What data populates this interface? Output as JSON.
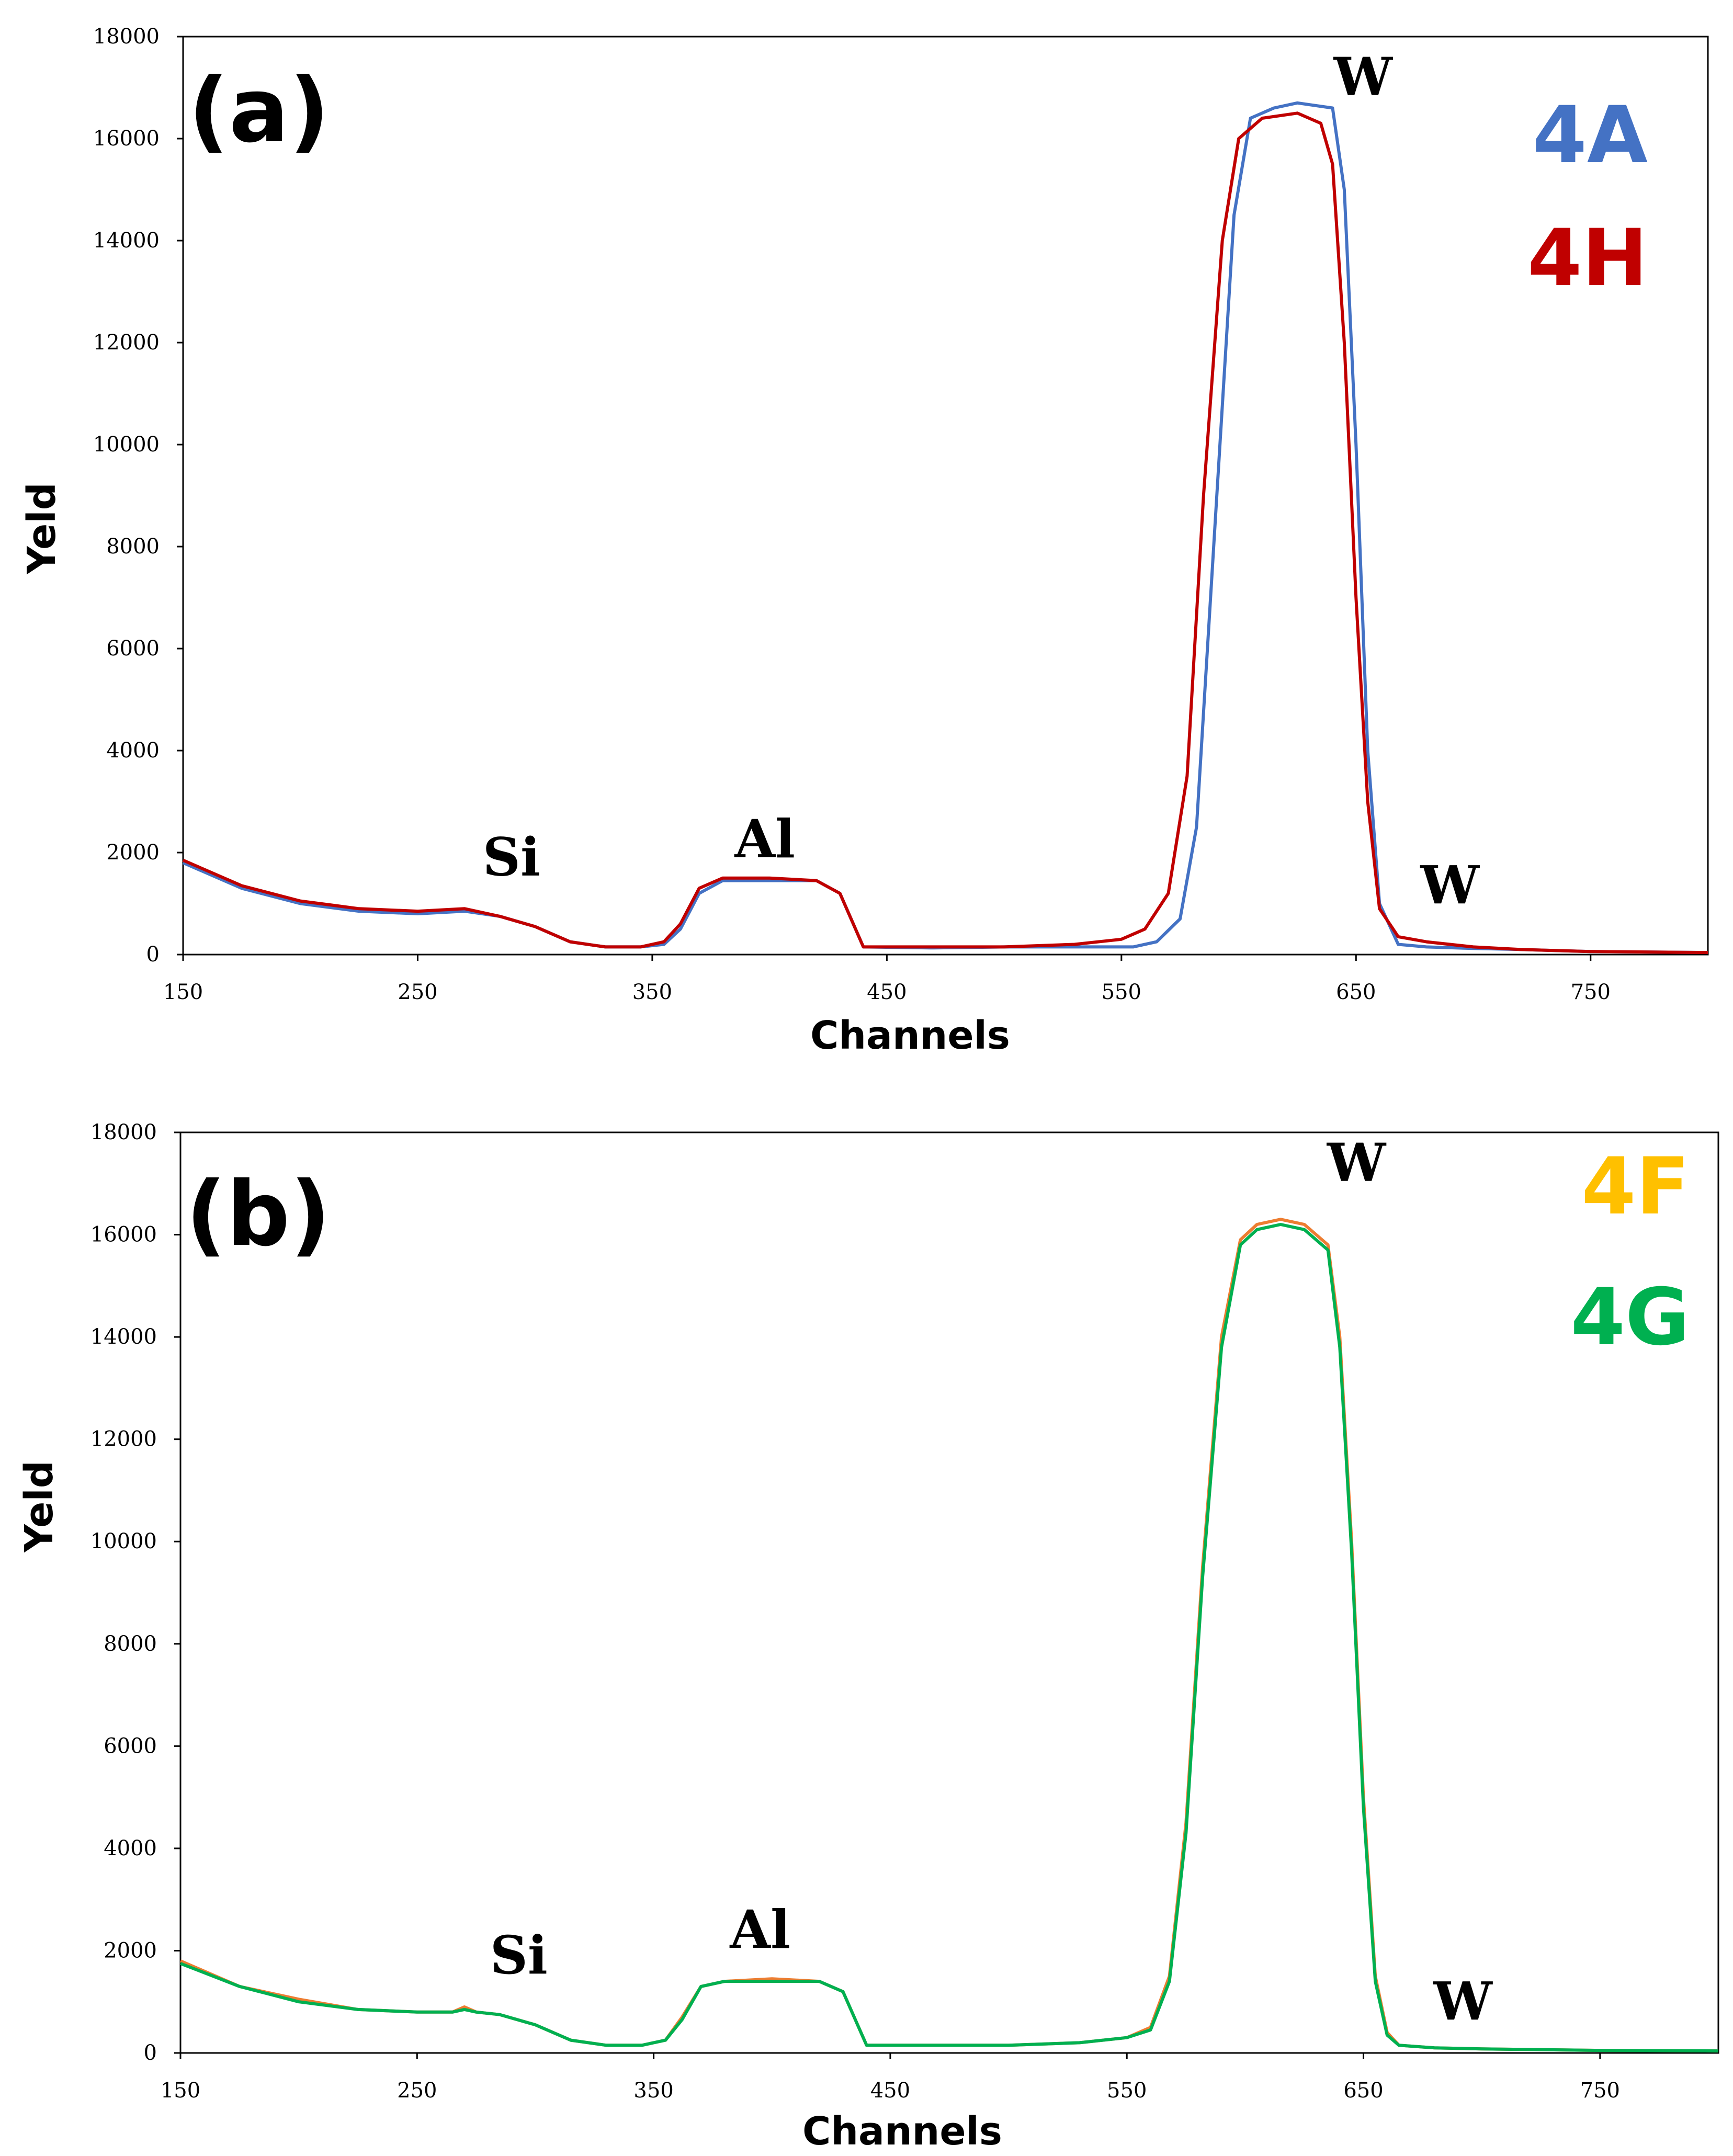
{
  "chart_data": [
    {
      "type": "line",
      "panel_label": "(a)",
      "xlabel": "Channels",
      "ylabel": "Yeld",
      "xlim": [
        150,
        800
      ],
      "ylim": [
        0,
        18000
      ],
      "xticks": [
        150,
        250,
        350,
        450,
        550,
        650,
        750
      ],
      "yticks": [
        0,
        2000,
        4000,
        6000,
        8000,
        10000,
        12000,
        14000,
        16000,
        18000
      ],
      "grid": false,
      "legend_position": "top-right",
      "series": [
        {
          "name": "4A",
          "color": "#4472C4",
          "x": [
            150,
            175,
            200,
            225,
            250,
            270,
            285,
            300,
            315,
            330,
            345,
            355,
            362,
            370,
            380,
            400,
            420,
            430,
            440,
            470,
            500,
            530,
            555,
            565,
            575,
            582,
            590,
            598,
            605,
            615,
            625,
            640,
            645,
            650,
            655,
            660,
            668,
            680,
            700,
            720,
            750,
            800
          ],
          "y": [
            1800,
            1300,
            1000,
            850,
            800,
            850,
            750,
            550,
            250,
            150,
            150,
            200,
            500,
            1200,
            1450,
            1450,
            1450,
            1200,
            150,
            130,
            150,
            150,
            150,
            250,
            700,
            2500,
            8500,
            14500,
            16400,
            16600,
            16700,
            16600,
            15000,
            10000,
            4000,
            1000,
            200,
            150,
            120,
            100,
            60,
            40
          ]
        },
        {
          "name": "4H",
          "color": "#C00000",
          "x": [
            150,
            175,
            200,
            225,
            250,
            270,
            285,
            300,
            315,
            330,
            345,
            355,
            362,
            370,
            380,
            400,
            420,
            430,
            440,
            470,
            500,
            530,
            550,
            560,
            570,
            578,
            585,
            593,
            600,
            610,
            625,
            635,
            640,
            645,
            650,
            655,
            660,
            668,
            680,
            700,
            720,
            750,
            800
          ],
          "y": [
            1850,
            1350,
            1050,
            900,
            850,
            900,
            750,
            550,
            250,
            150,
            150,
            250,
            600,
            1300,
            1500,
            1500,
            1450,
            1200,
            150,
            150,
            150,
            200,
            300,
            500,
            1200,
            3500,
            9000,
            14000,
            16000,
            16400,
            16500,
            16300,
            15500,
            12000,
            7000,
            3000,
            900,
            350,
            250,
            150,
            100,
            60,
            40
          ]
        }
      ],
      "annotations": [
        {
          "text": "Si",
          "x": 290,
          "y": 1300
        },
        {
          "text": "Al",
          "x": 398,
          "y": 1650
        },
        {
          "text": "W",
          "x": 653,
          "y": 16600
        },
        {
          "text": "W",
          "x": 690,
          "y": 750
        }
      ]
    },
    {
      "type": "line",
      "panel_label": "(b)",
      "xlabel": "Channels",
      "ylabel": "Yeld",
      "xlim": [
        150,
        800
      ],
      "ylim": [
        0,
        18000
      ],
      "xticks": [
        150,
        250,
        350,
        450,
        550,
        650,
        750
      ],
      "yticks": [
        0,
        2000,
        4000,
        6000,
        8000,
        10000,
        12000,
        14000,
        16000,
        18000
      ],
      "grid": false,
      "legend_position": "top-right",
      "series": [
        {
          "name": "4F",
          "color": "#ED7D31",
          "legend_color": "#FFC000",
          "x": [
            150,
            175,
            200,
            225,
            250,
            265,
            270,
            275,
            285,
            300,
            315,
            330,
            345,
            355,
            362,
            370,
            380,
            400,
            420,
            430,
            440,
            470,
            500,
            530,
            550,
            560,
            568,
            575,
            582,
            590,
            598,
            605,
            615,
            625,
            635,
            640,
            645,
            650,
            655,
            660,
            665,
            680,
            700,
            750,
            800
          ],
          "y": [
            1800,
            1300,
            1050,
            850,
            800,
            800,
            900,
            800,
            750,
            550,
            250,
            150,
            150,
            250,
            700,
            1300,
            1400,
            1450,
            1400,
            1200,
            150,
            150,
            150,
            200,
            300,
            500,
            1500,
            4500,
            9500,
            14000,
            15900,
            16200,
            16300,
            16200,
            15800,
            14000,
            10000,
            5000,
            1500,
            400,
            150,
            100,
            80,
            50,
            40
          ]
        },
        {
          "name": "4G",
          "color": "#00B050",
          "legend_color": "#00B050",
          "x": [
            150,
            175,
            200,
            225,
            250,
            265,
            270,
            275,
            285,
            300,
            315,
            330,
            345,
            355,
            362,
            370,
            380,
            400,
            420,
            430,
            440,
            470,
            500,
            530,
            550,
            560,
            568,
            575,
            582,
            590,
            598,
            605,
            615,
            625,
            635,
            640,
            645,
            650,
            655,
            660,
            665,
            680,
            700,
            750,
            800
          ],
          "y": [
            1750,
            1300,
            1000,
            850,
            800,
            800,
            850,
            800,
            750,
            550,
            250,
            150,
            150,
            250,
            650,
            1300,
            1400,
            1400,
            1400,
            1200,
            150,
            150,
            150,
            200,
            300,
            450,
            1400,
            4300,
            9300,
            13800,
            15800,
            16100,
            16200,
            16100,
            15700,
            13800,
            9800,
            4800,
            1400,
            350,
            150,
            100,
            80,
            50,
            40
          ]
        }
      ],
      "annotations": [
        {
          "text": "Si",
          "x": 293,
          "y": 1300
        },
        {
          "text": "Al",
          "x": 395,
          "y": 1800
        },
        {
          "text": "W",
          "x": 647,
          "y": 16800
        },
        {
          "text": "W",
          "x": 692,
          "y": 400
        }
      ]
    }
  ]
}
